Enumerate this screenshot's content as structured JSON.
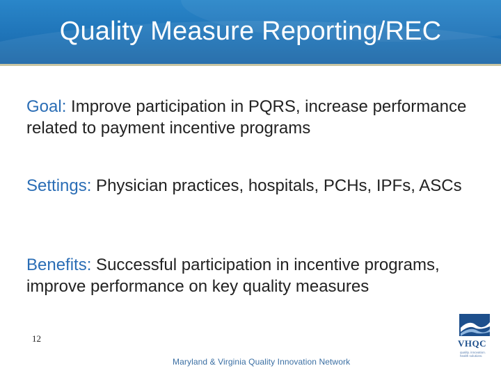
{
  "slide": {
    "title": "Quality Measure Reporting/REC",
    "items": [
      {
        "label": "Goal:",
        "text": " Improve participation in PQRS, increase performance related to payment incentive programs"
      },
      {
        "label": "Settings:",
        "text": " Physician practices, hospitals, PCHs, IPFs, ASCs"
      },
      {
        "label": "Benefits:",
        "text": " Successful participation in incentive programs, improve performance on key quality measures"
      }
    ],
    "page_number": "12",
    "footer": "Maryland & Virginia Quality Innovation Network",
    "logo": {
      "name": "VHQC",
      "tagline": "quality. innovation. health solutions."
    }
  },
  "colors": {
    "header": "#1f74b8",
    "label": "#2a6db5",
    "footer": "#3b6fa3"
  }
}
